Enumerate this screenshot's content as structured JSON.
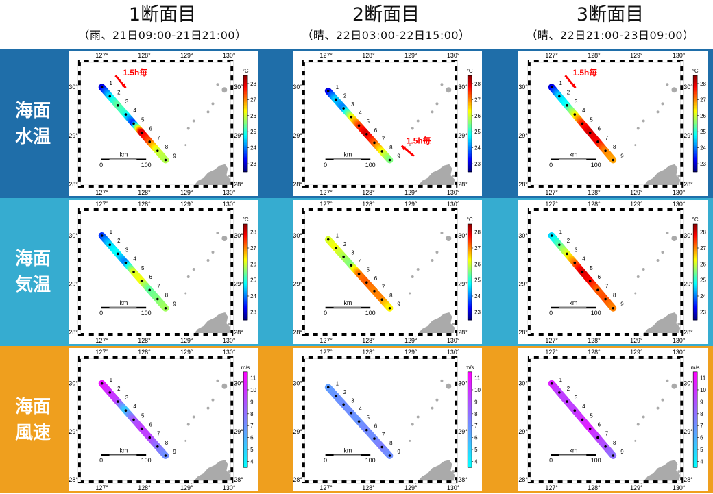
{
  "columns": [
    {
      "title": "1断面目",
      "subtitle": "（雨、21日09:00-21日21:00）"
    },
    {
      "title": "2断面目",
      "subtitle": "（晴、22日03:00-22日15:00）"
    },
    {
      "title": "3断面目",
      "subtitle": "（晴、22日21:00-23日09:00）"
    }
  ],
  "rows": [
    {
      "label": "海面\n水温",
      "color": "#1f6ea9",
      "unit": "°C",
      "ticks": [
        23,
        24,
        25,
        26,
        27,
        28
      ],
      "range": [
        22.5,
        28.5
      ],
      "cmap": "jet"
    },
    {
      "label": "海面\n気温",
      "color": "#36acd0",
      "unit": "°C",
      "ticks": [
        23,
        24,
        25,
        26,
        27,
        28
      ],
      "range": [
        22.5,
        28.5
      ],
      "cmap": "jet"
    },
    {
      "label": "海面\n風速",
      "color": "#ef9f1e",
      "unit": "m/s",
      "ticks": [
        4,
        5,
        6,
        7,
        8,
        9,
        10,
        11
      ],
      "range": [
        3.5,
        11.5
      ],
      "cmap": "cool"
    }
  ],
  "annotation": {
    "text": "1.5h毎",
    "color": "#ff0000"
  },
  "chart_data": {
    "type": "scatter",
    "lon_ticks": [
      "127°",
      "128°",
      "129°",
      "130°"
    ],
    "lat_ticks": [
      "30°",
      "29°",
      "28°"
    ],
    "scale_bar": {
      "unit": "km",
      "labels": [
        "0",
        "100"
      ]
    },
    "station_labels": [
      "1",
      "2",
      "3",
      "4",
      "5",
      "6",
      "7",
      "8",
      "9"
    ],
    "tracks": [
      {
        "start": [
          127.0,
          30.0
        ],
        "end": [
          128.5,
          28.5
        ]
      },
      {
        "start": [
          127.05,
          29.92
        ],
        "end": [
          128.5,
          28.5
        ]
      },
      {
        "start": [
          127.0,
          30.0
        ],
        "end": [
          128.45,
          28.5
        ]
      }
    ],
    "values": [
      [
        [
          23,
          24.5,
          25.3,
          25,
          23.5,
          28,
          27.3,
          26,
          25.8
        ],
        [
          23,
          24.5,
          24,
          26,
          27.3,
          28,
          27.3,
          26.3,
          25.5
        ],
        [
          23,
          24.5,
          24.8,
          26,
          27.5,
          28,
          27.8,
          27,
          26.8
        ]
      ],
      [
        [
          23.5,
          24.5,
          24.8,
          24,
          26,
          26.2,
          25.3,
          25.5,
          25.7
        ],
        [
          26,
          26.2,
          25.8,
          25.5,
          27,
          27.2,
          27,
          27,
          26.3
        ],
        [
          24.5,
          25.2,
          26,
          27,
          28,
          27.8,
          27.2,
          27.3,
          27
        ]
      ],
      [
        [
          11,
          10,
          9.5,
          5,
          8.5,
          9.5,
          9.5,
          8,
          7
        ],
        [
          6.5,
          6.8,
          7,
          7,
          6.8,
          7.2,
          7,
          7.5,
          7
        ],
        [
          10.5,
          9.5,
          9.5,
          9.5,
          10,
          10.5,
          9.5,
          9,
          8
        ]
      ]
    ]
  }
}
